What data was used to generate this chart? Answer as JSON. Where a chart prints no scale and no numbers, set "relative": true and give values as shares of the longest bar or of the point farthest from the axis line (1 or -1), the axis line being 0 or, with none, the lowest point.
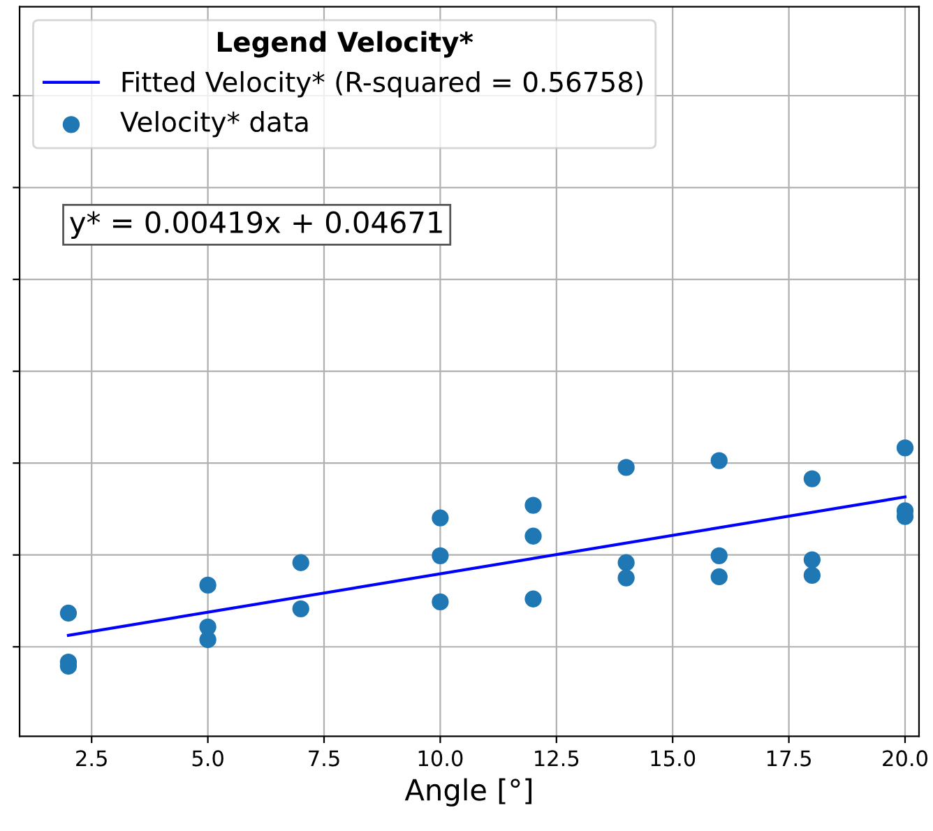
{
  "chart_data": {
    "type": "scatter",
    "relative": true,
    "xlabel": "Angle [°]",
    "legend_title": "Legend Velocity*",
    "legend": "top left",
    "grid": true,
    "tick_labels": "x",
    "xlim": [
      0.95,
      20.3
    ],
    "xticks": [
      2.5,
      {
        "value": 5,
        "label": "5.0"
      },
      7.5,
      {
        "value": 10,
        "label": "10.0"
      },
      12.5,
      {
        "value": 15,
        "label": "15.0"
      },
      17.5,
      {
        "value": 20,
        "label": "20.0"
      }
    ],
    "annotations": [
      "y* = 0.00419x + 0.04671"
    ],
    "series": [
      {
        "type": "line",
        "name": "Fitted Velocity* (R-squared = 0.56758)",
        "color": "#0000ff",
        "line_style": "solid",
        "marker": "none",
        "x": [
          2,
          20
        ],
        "values": [
          0.35,
          0.83
        ]
      },
      {
        "name": "Velocity* data",
        "color": "#1f77b4",
        "marker": "circle",
        "x": [
          2,
          2,
          2,
          5,
          5,
          5,
          7,
          7,
          10,
          10,
          10,
          12,
          12,
          12,
          14,
          14,
          14,
          16,
          16,
          16,
          18,
          18,
          18,
          20,
          20,
          20
        ],
        "values": [
          0.427,
          0.257,
          0.243,
          0.524,
          0.379,
          0.335,
          0.602,
          0.442,
          0.757,
          0.626,
          0.466,
          0.801,
          0.694,
          0.476,
          0.932,
          0.602,
          0.549,
          0.956,
          0.626,
          0.553,
          0.893,
          0.612,
          0.558,
          1.0,
          0.782,
          0.762
        ]
      }
    ]
  }
}
